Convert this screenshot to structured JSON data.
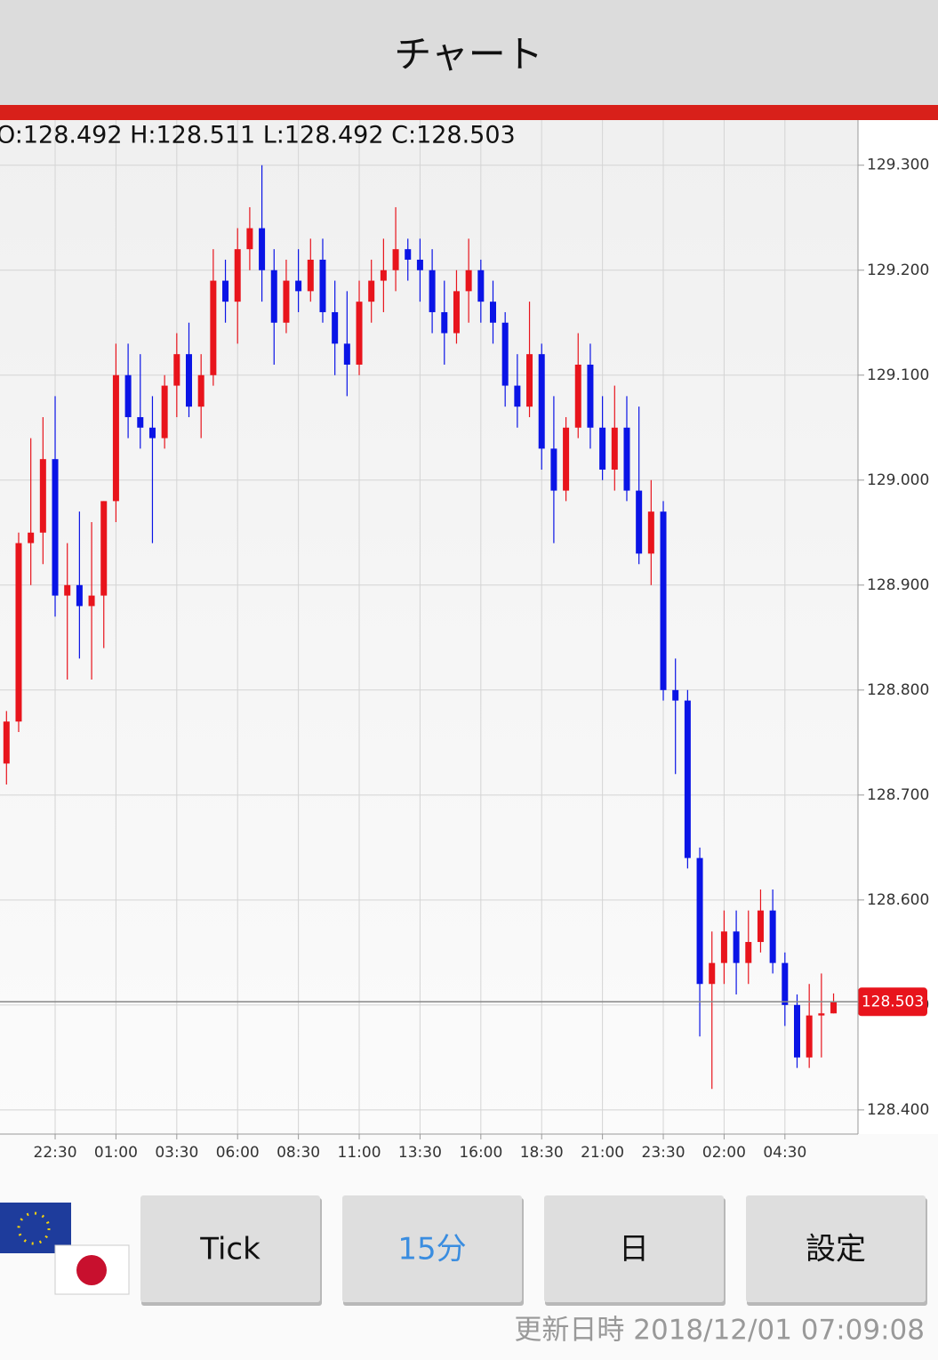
{
  "header": {
    "title": "チャート"
  },
  "chart_data": {
    "type": "candlestick",
    "ohlc_label": "O:128.492 H:128.511 L:128.492 C:128.503",
    "up_color": "#e8141c",
    "down_color": "#0a14e6",
    "categories": [
      null,
      null,
      null,
      null,
      "22:30",
      null,
      null,
      null,
      null,
      "01:00",
      null,
      null,
      null,
      null,
      "03:30",
      null,
      null,
      null,
      null,
      "06:00",
      null,
      null,
      null,
      null,
      "08:30",
      null,
      null,
      null,
      null,
      "11:00",
      null,
      null,
      null,
      null,
      "13:30",
      null,
      null,
      null,
      null,
      "16:00",
      null,
      null,
      null,
      null,
      "18:30",
      null,
      null,
      null,
      null,
      "21:00",
      null,
      null,
      null,
      null,
      "23:30",
      null,
      null,
      null,
      null,
      "02:00",
      null,
      null,
      null,
      null,
      "04:30",
      null,
      null,
      null,
      null
    ],
    "open": [
      128.73,
      128.77,
      128.94,
      128.95,
      129.02,
      128.89,
      128.9,
      128.88,
      128.89,
      128.98,
      129.1,
      129.06,
      129.05,
      129.04,
      129.09,
      129.12,
      129.07,
      129.1,
      129.19,
      129.17,
      129.22,
      129.24,
      129.2,
      129.15,
      129.19,
      129.18,
      129.21,
      129.16,
      129.13,
      129.11,
      129.17,
      129.19,
      129.2,
      129.22,
      129.21,
      129.2,
      129.16,
      129.14,
      129.18,
      129.2,
      129.17,
      129.15,
      129.09,
      129.07,
      129.12,
      129.03,
      128.99,
      129.05,
      129.11,
      129.05,
      129.01,
      129.05,
      128.99,
      128.93,
      128.97,
      128.8,
      128.79,
      128.64,
      128.52,
      128.54,
      128.57,
      128.54,
      128.56,
      128.59,
      128.54,
      128.5,
      128.45,
      128.49,
      128.492
    ],
    "high": [
      128.78,
      128.95,
      129.04,
      129.06,
      129.08,
      128.94,
      128.97,
      128.96,
      128.98,
      129.13,
      129.13,
      129.12,
      129.08,
      129.1,
      129.14,
      129.15,
      129.12,
      129.22,
      129.21,
      129.24,
      129.26,
      129.3,
      129.22,
      129.21,
      129.22,
      129.23,
      129.23,
      129.19,
      129.18,
      129.19,
      129.21,
      129.23,
      129.26,
      129.23,
      129.23,
      129.22,
      129.19,
      129.2,
      129.23,
      129.21,
      129.19,
      129.16,
      129.12,
      129.17,
      129.13,
      129.08,
      129.06,
      129.14,
      129.13,
      129.08,
      129.09,
      129.08,
      129.07,
      129.0,
      128.98,
      128.83,
      128.8,
      128.65,
      128.57,
      128.59,
      128.59,
      128.59,
      128.61,
      128.61,
      128.55,
      128.51,
      128.52,
      128.53,
      128.511
    ],
    "low": [
      128.71,
      128.76,
      128.9,
      128.92,
      128.87,
      128.81,
      128.83,
      128.81,
      128.84,
      128.96,
      129.04,
      129.03,
      128.94,
      129.03,
      129.06,
      129.06,
      129.04,
      129.09,
      129.15,
      129.13,
      129.2,
      129.17,
      129.11,
      129.14,
      129.16,
      129.17,
      129.15,
      129.1,
      129.08,
      129.1,
      129.15,
      129.16,
      129.18,
      129.19,
      129.17,
      129.14,
      129.11,
      129.13,
      129.15,
      129.15,
      129.13,
      129.07,
      129.05,
      129.06,
      129.01,
      128.94,
      128.98,
      129.04,
      129.03,
      129.0,
      128.99,
      128.98,
      128.92,
      128.9,
      128.79,
      128.72,
      128.63,
      128.47,
      128.42,
      128.52,
      128.51,
      128.52,
      128.55,
      128.53,
      128.48,
      128.44,
      128.44,
      128.45,
      128.492
    ],
    "close": [
      128.77,
      128.94,
      128.95,
      129.02,
      128.89,
      128.9,
      128.88,
      128.89,
      128.98,
      129.1,
      129.06,
      129.05,
      129.04,
      129.09,
      129.12,
      129.07,
      129.1,
      129.19,
      129.17,
      129.22,
      129.24,
      129.2,
      129.15,
      129.19,
      129.18,
      129.21,
      129.16,
      129.13,
      129.11,
      129.17,
      129.19,
      129.2,
      129.22,
      129.21,
      129.2,
      129.16,
      129.14,
      129.18,
      129.2,
      129.17,
      129.15,
      129.09,
      129.07,
      129.12,
      129.03,
      128.99,
      129.05,
      129.11,
      129.05,
      129.01,
      129.05,
      128.99,
      128.93,
      128.97,
      128.8,
      128.79,
      128.64,
      128.52,
      128.54,
      128.57,
      128.54,
      128.56,
      128.59,
      128.54,
      128.5,
      128.45,
      128.49,
      128.492,
      128.503
    ],
    "last_price": {
      "value": 128.503,
      "label": "128.503"
    },
    "ylim": [
      128.377,
      129.343
    ],
    "yticks": [
      {
        "value": 128.4,
        "label": "128.400"
      },
      {
        "value": 128.5,
        "label": "128.500"
      },
      {
        "value": 128.6,
        "label": "128.600"
      },
      {
        "value": 128.7,
        "label": "128.700"
      },
      {
        "value": 128.8,
        "label": "128.800"
      },
      {
        "value": 128.9,
        "label": "128.900"
      },
      {
        "value": 129.0,
        "label": "129.000"
      },
      {
        "value": 129.1,
        "label": "129.100"
      },
      {
        "value": 129.2,
        "label": "129.200"
      },
      {
        "value": 129.3,
        "label": "129.300"
      }
    ],
    "grid": true
  },
  "buttons": [
    "Tick",
    "15分",
    "日",
    "設定"
  ],
  "footer": {
    "updated": "更新日時 2018/12/01 07:09:08"
  }
}
